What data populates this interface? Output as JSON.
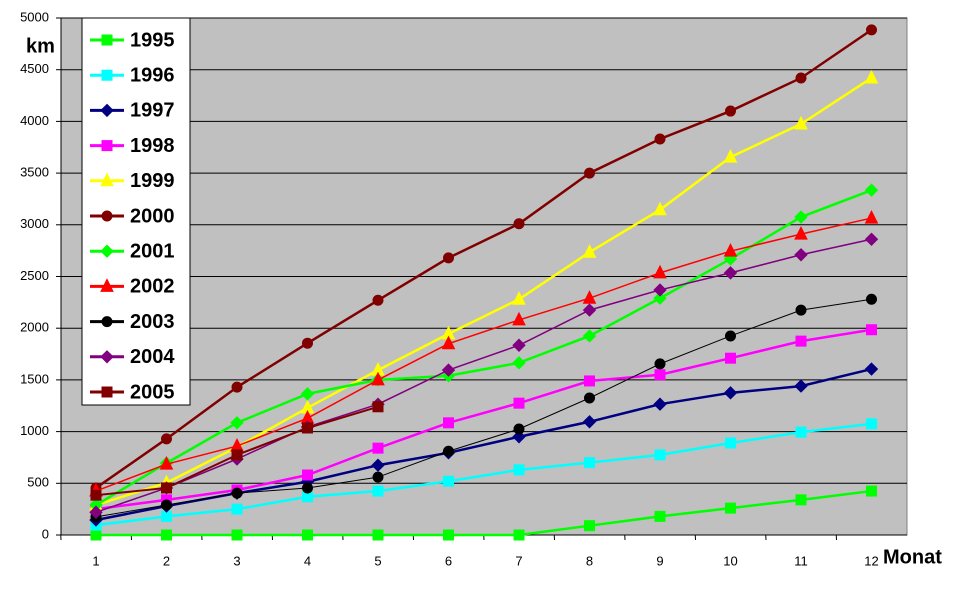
{
  "chart_data": {
    "type": "line",
    "y_label": "km",
    "x_label": "Monat",
    "categories": [
      "1",
      "2",
      "3",
      "4",
      "5",
      "6",
      "7",
      "8",
      "9",
      "10",
      "11",
      "12"
    ],
    "ylim": [
      0,
      5000
    ],
    "yticks": [
      0,
      500,
      1000,
      1500,
      2000,
      2500,
      3000,
      3500,
      4000,
      4500,
      5000
    ],
    "grid": true,
    "background": "#c0c0c0",
    "legend": "upper-left",
    "series": [
      {
        "name": "1995",
        "color": "#00ff00",
        "marker": "square",
        "line_width": 2.5,
        "values": [
          0,
          0,
          0,
          0,
          0,
          0,
          0,
          90,
          180,
          260,
          340,
          425
        ]
      },
      {
        "name": "1996",
        "color": "#00ffff",
        "marker": "square",
        "line_width": 2.5,
        "values": [
          95,
          180,
          250,
          370,
          425,
          520,
          630,
          700,
          775,
          890,
          995,
          1075
        ]
      },
      {
        "name": "1997",
        "color": "#000080",
        "marker": "diamond",
        "line_width": 2.5,
        "values": [
          145,
          280,
          405,
          515,
          675,
          795,
          950,
          1095,
          1265,
          1375,
          1440,
          1605
        ]
      },
      {
        "name": "1998",
        "color": "#ff00ff",
        "marker": "square",
        "line_width": 2.5,
        "values": [
          250,
          340,
          435,
          580,
          840,
          1085,
          1275,
          1490,
          1550,
          1710,
          1875,
          1985
        ]
      },
      {
        "name": "1999",
        "color": "#ffff00",
        "marker": "triangle",
        "line_width": 2.5,
        "values": [
          290,
          505,
          850,
          1230,
          1595,
          1945,
          2280,
          2735,
          3145,
          3655,
          3975,
          4420
        ]
      },
      {
        "name": "2000",
        "color": "#800000",
        "marker": "circle",
        "line_width": 2.5,
        "values": [
          455,
          930,
          1430,
          1855,
          2270,
          2680,
          3010,
          3500,
          3830,
          4100,
          4420,
          4885
        ]
      },
      {
        "name": "2001",
        "color": "#00ff00",
        "marker": "diamond",
        "line_width": 2.5,
        "values": [
          290,
          695,
          1085,
          1365,
          1500,
          1540,
          1665,
          1925,
          2290,
          2670,
          3075,
          3335
        ]
      },
      {
        "name": "2002",
        "color": "#ff0000",
        "marker": "triangle",
        "line_width": 1.5,
        "values": [
          425,
          685,
          860,
          1130,
          1500,
          1850,
          2080,
          2290,
          2535,
          2745,
          2910,
          3065
        ]
      },
      {
        "name": "2003",
        "color": "#000000",
        "marker": "circle",
        "line_width": 1,
        "values": [
          175,
          290,
          405,
          455,
          560,
          810,
          1025,
          1325,
          1655,
          1925,
          2175,
          2280
        ]
      },
      {
        "name": "2004",
        "color": "#800080",
        "marker": "diamond",
        "line_width": 1.5,
        "values": [
          220,
          455,
          735,
          1045,
          1265,
          1595,
          1835,
          2175,
          2370,
          2535,
          2710,
          2860
        ]
      },
      {
        "name": "2005",
        "color": "#800000",
        "marker": "square",
        "line_width": 2,
        "values": [
          385,
          455,
          775,
          1035,
          1240,
          null,
          null,
          null,
          null,
          null,
          null,
          null
        ]
      }
    ]
  }
}
